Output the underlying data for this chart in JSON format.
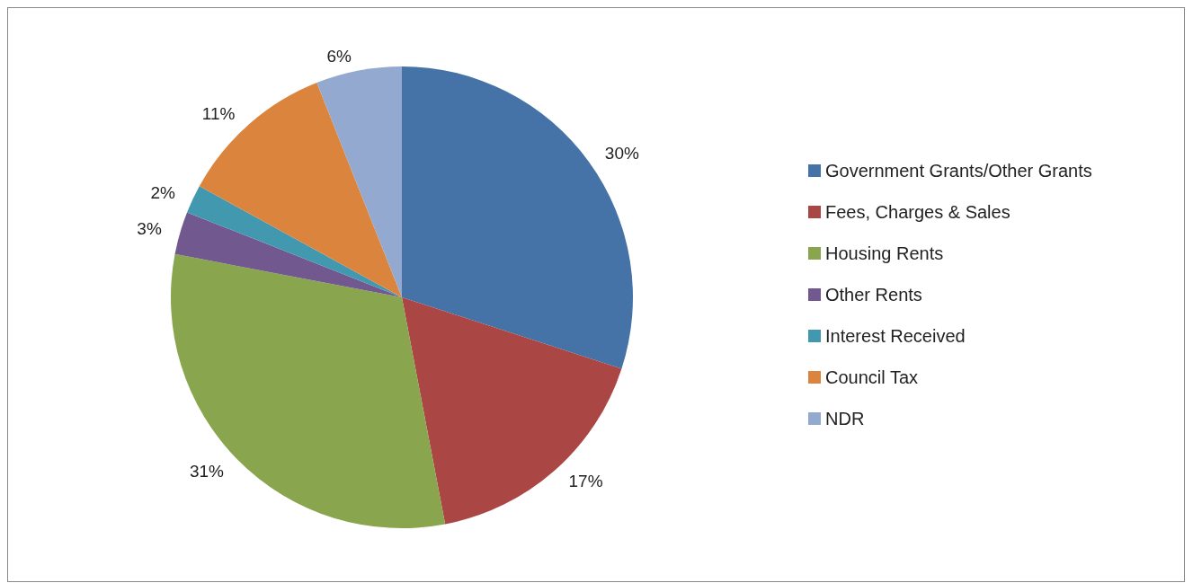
{
  "chart_data": {
    "type": "pie",
    "categories": [
      "Government Grants/Other Grants",
      "Fees, Charges & Sales",
      "Housing Rents",
      "Other Rents",
      "Interest Received",
      "Council Tax",
      "NDR"
    ],
    "values": [
      30,
      17,
      31,
      3,
      2,
      11,
      6
    ],
    "value_labels": [
      "30%",
      "17%",
      "31%",
      "3%",
      "2%",
      "11%",
      "6%"
    ],
    "colors": [
      "#4572a7",
      "#aa4643",
      "#89a54e",
      "#71588f",
      "#4198af",
      "#db843d",
      "#93a9cf"
    ],
    "legend": "right"
  }
}
